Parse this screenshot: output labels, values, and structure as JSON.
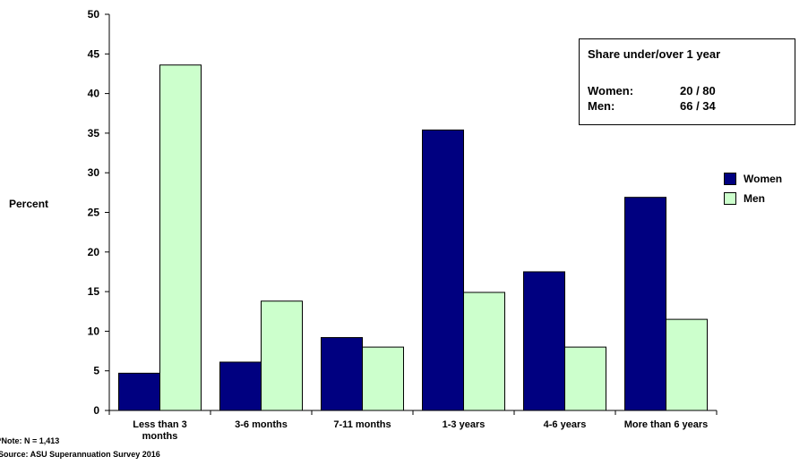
{
  "chart_data": {
    "type": "bar",
    "ylabel": "Percent",
    "ylim": [
      0,
      50
    ],
    "ytick_step": 5,
    "categories": [
      "Less than 3 months",
      "3-6 months",
      "7-11 months",
      "1-3 years",
      "4-6 years",
      "More than 6 years"
    ],
    "category_label_lines": [
      [
        "Less than 3",
        "months"
      ],
      [
        "3-6 months"
      ],
      [
        "7-11 months"
      ],
      [
        "1-3 years"
      ],
      [
        "4-6 years"
      ],
      [
        "More than 6 years"
      ]
    ],
    "series": [
      {
        "name": "Women",
        "color": "#000080",
        "values": [
          4.7,
          6.1,
          9.2,
          35.4,
          17.5,
          26.9
        ]
      },
      {
        "name": "Men",
        "color": "#ccffcc",
        "values": [
          43.6,
          13.8,
          8.0,
          14.9,
          8.0,
          11.5
        ]
      }
    ],
    "legend_position": "right",
    "grid": false
  },
  "infobox": {
    "title": "Share under/over 1 year",
    "rows": [
      {
        "label": "Women:",
        "value": "20 / 80"
      },
      {
        "label": "Men:",
        "value": "66 / 34"
      }
    ]
  },
  "footnotes": {
    "note": "*Note: N = 1,413",
    "source": "Source: ASU Superannuation Survey 2016"
  }
}
